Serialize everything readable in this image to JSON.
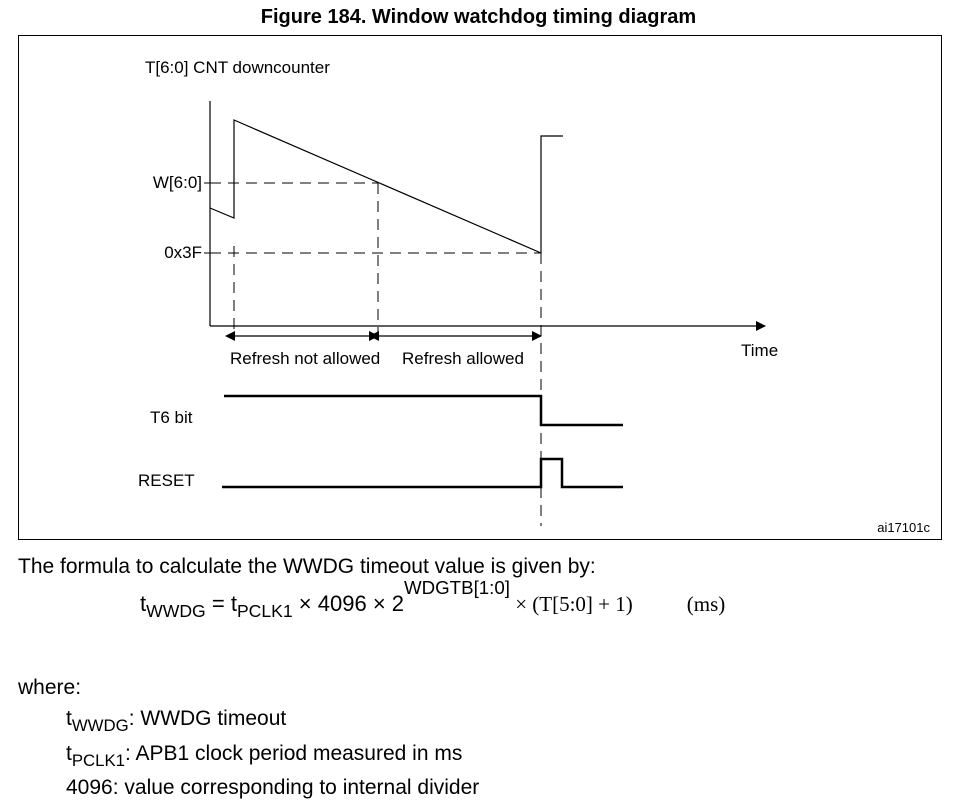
{
  "figure_title": "Figure 184. Window watchdog timing diagram",
  "diagram": {
    "counter_label": "T[6:0] CNT downcounter",
    "window_label": "W[6:0]",
    "threshold_label": "0x3F",
    "time_label": "Time",
    "refresh_not_allowed": "Refresh not allowed",
    "refresh_allowed": "Refresh allowed",
    "t6_label": "T6 bit",
    "reset_label": "RESET",
    "figure_id": "ai17101c"
  },
  "formula_intro": "The formula to calculate the WWDG timeout value is given by:",
  "formula": {
    "t": "t",
    "wwdg_sub": "WWDG",
    "equals": " = ",
    "pclk_sub": "PCLK1",
    "times_4096": " × 4096 × 2",
    "exponent": "WDGTB[1:0]",
    "times_t": " × (T[5:0] + 1)",
    "unit": "(ms)"
  },
  "where_label": "where:",
  "definitions": [
    {
      "t": "t",
      "sub": "WWDG",
      "text": ": WWDG timeout"
    },
    {
      "t": "t",
      "sub": "PCLK1",
      "text": ": APB1 clock period measured in ms"
    },
    {
      "t": "",
      "sub": "",
      "text": "4096: value corresponding to internal divider"
    }
  ]
}
